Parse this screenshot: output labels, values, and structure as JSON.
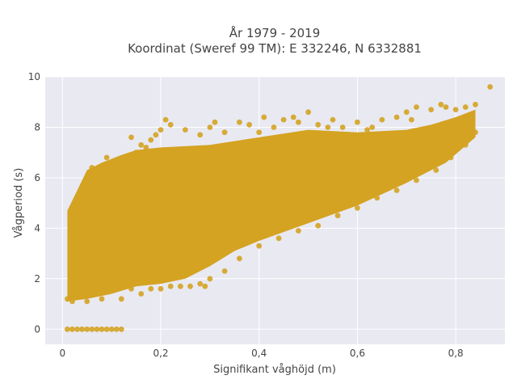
{
  "chart_data": {
    "type": "scatter",
    "title_line1": "År 1979 - 2019",
    "title_line2": "Koordinat (Sweref 99 TM): E 332246, N 6332881",
    "xlabel": "Signifikant våghöjd (m)",
    "ylabel": "Vågperiod (s)",
    "xlim": [
      -0.035,
      0.9
    ],
    "ylim": [
      -0.6,
      10.0
    ],
    "x_ticks": [
      0,
      0.2,
      0.4,
      0.6,
      0.8
    ],
    "x_tick_labels": [
      "0",
      "0,2",
      "0,4",
      "0,6",
      "0,8"
    ],
    "y_ticks": [
      0,
      2,
      4,
      6,
      8,
      10
    ],
    "y_tick_labels": [
      "0",
      "2",
      "4",
      "6",
      "8",
      "10"
    ],
    "grid": true,
    "marker_color": "#D4A322",
    "plot_background": "#E9E9F2",
    "points": [
      [
        0.01,
        0.0
      ],
      [
        0.02,
        0.0
      ],
      [
        0.03,
        0.0
      ],
      [
        0.04,
        0.0
      ],
      [
        0.05,
        0.0
      ],
      [
        0.06,
        0.0
      ],
      [
        0.07,
        0.0
      ],
      [
        0.08,
        0.0
      ],
      [
        0.09,
        0.0
      ],
      [
        0.1,
        0.0
      ],
      [
        0.11,
        0.0
      ],
      [
        0.12,
        0.0
      ],
      [
        0.01,
        1.2
      ],
      [
        0.02,
        1.5
      ],
      [
        0.03,
        2.2
      ],
      [
        0.04,
        2.8
      ],
      [
        0.05,
        3.3
      ],
      [
        0.06,
        3.6
      ],
      [
        0.07,
        4.0
      ],
      [
        0.08,
        4.5
      ],
      [
        0.09,
        5.1
      ],
      [
        0.1,
        5.5
      ],
      [
        0.11,
        6.0
      ],
      [
        0.12,
        6.3
      ],
      [
        0.13,
        6.6
      ],
      [
        0.14,
        6.8
      ],
      [
        0.15,
        7.0
      ],
      [
        0.16,
        7.3
      ],
      [
        0.17,
        7.2
      ],
      [
        0.18,
        7.5
      ],
      [
        0.19,
        7.7
      ],
      [
        0.2,
        7.9
      ],
      [
        0.21,
        8.3
      ],
      [
        0.22,
        8.1
      ],
      [
        0.25,
        7.9
      ],
      [
        0.28,
        7.7
      ],
      [
        0.3,
        8.0
      ],
      [
        0.33,
        7.8
      ],
      [
        0.36,
        8.2
      ],
      [
        0.38,
        8.1
      ],
      [
        0.4,
        7.8
      ],
      [
        0.43,
        8.0
      ],
      [
        0.45,
        8.3
      ],
      [
        0.48,
        8.2
      ],
      [
        0.5,
        8.6
      ],
      [
        0.52,
        8.1
      ],
      [
        0.55,
        8.3
      ],
      [
        0.57,
        8.0
      ],
      [
        0.6,
        8.2
      ],
      [
        0.62,
        7.9
      ],
      [
        0.65,
        8.3
      ],
      [
        0.68,
        8.4
      ],
      [
        0.7,
        8.6
      ],
      [
        0.72,
        8.8
      ],
      [
        0.75,
        8.7
      ],
      [
        0.77,
        8.9
      ],
      [
        0.8,
        8.7
      ],
      [
        0.82,
        8.8
      ],
      [
        0.84,
        8.9
      ],
      [
        0.87,
        9.6
      ],
      [
        0.02,
        1.1
      ],
      [
        0.05,
        1.1
      ],
      [
        0.08,
        1.2
      ],
      [
        0.12,
        1.2
      ],
      [
        0.16,
        1.4
      ],
      [
        0.2,
        1.6
      ],
      [
        0.24,
        1.7
      ],
      [
        0.28,
        1.8
      ],
      [
        0.3,
        2.0
      ],
      [
        0.33,
        2.3
      ],
      [
        0.36,
        2.8
      ],
      [
        0.4,
        3.3
      ],
      [
        0.44,
        3.6
      ],
      [
        0.48,
        3.9
      ],
      [
        0.52,
        4.1
      ],
      [
        0.56,
        4.5
      ],
      [
        0.6,
        4.8
      ],
      [
        0.64,
        5.2
      ],
      [
        0.68,
        5.5
      ],
      [
        0.72,
        5.9
      ],
      [
        0.76,
        6.3
      ],
      [
        0.79,
        6.8
      ],
      [
        0.82,
        7.3
      ],
      [
        0.84,
        7.8
      ],
      [
        0.1,
        1.6
      ],
      [
        0.14,
        1.6
      ],
      [
        0.18,
        1.6
      ],
      [
        0.22,
        1.7
      ],
      [
        0.26,
        1.7
      ],
      [
        0.29,
        1.7
      ],
      [
        0.06,
        6.4
      ],
      [
        0.09,
        6.8
      ],
      [
        0.14,
        7.6
      ],
      [
        0.31,
        8.2
      ],
      [
        0.41,
        8.4
      ],
      [
        0.47,
        8.4
      ],
      [
        0.54,
        8.0
      ],
      [
        0.63,
        8.0
      ],
      [
        0.71,
        8.3
      ],
      [
        0.78,
        8.8
      ]
    ]
  }
}
